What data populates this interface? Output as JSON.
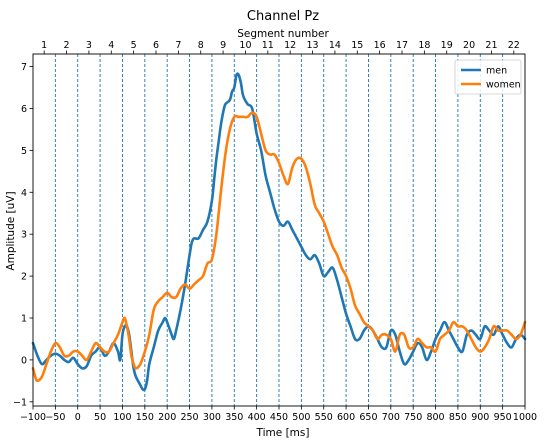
{
  "chart_data": {
    "type": "line",
    "title": "Channel Pz",
    "xlabel": "Time [ms]",
    "ylabel": "Amplitude [uV]",
    "top_axis_label": "Segment number",
    "xlim": [
      -100,
      1000
    ],
    "ylim": [
      -1.1,
      7.3
    ],
    "x_ticks": [
      -100,
      -50,
      0,
      50,
      100,
      150,
      200,
      250,
      300,
      350,
      400,
      450,
      500,
      550,
      600,
      650,
      700,
      750,
      800,
      850,
      900,
      950,
      1000
    ],
    "x_tick_labels": [
      "−100",
      "−50",
      "0",
      "50",
      "100",
      "150",
      "200",
      "250",
      "300",
      "350",
      "400",
      "450",
      "500",
      "550",
      "600",
      "650",
      "700",
      "750",
      "800",
      "850",
      "900",
      "950",
      "1000"
    ],
    "y_ticks": [
      -1,
      0,
      1,
      2,
      3,
      4,
      5,
      6,
      7
    ],
    "y_tick_labels": [
      "−1",
      "0",
      "1",
      "2",
      "3",
      "4",
      "5",
      "6",
      "7"
    ],
    "segment_boundaries": [
      -50,
      0,
      50,
      100,
      150,
      200,
      250,
      300,
      350,
      400,
      450,
      500,
      550,
      600,
      650,
      700,
      750,
      800,
      850,
      900,
      950
    ],
    "segment_numbers": [
      "1",
      "2",
      "3",
      "4",
      "5",
      "6",
      "7",
      "8",
      "9",
      "10",
      "11",
      "12",
      "13",
      "14",
      "15",
      "16",
      "17",
      "18",
      "19",
      "20",
      "21",
      "22"
    ],
    "grid": false,
    "legend_position": "top-right",
    "series": [
      {
        "name": "men",
        "color": "#1f77b4",
        "points": [
          [
            -100,
            0.4
          ],
          [
            -90,
            0.1
          ],
          [
            -80,
            -0.1
          ],
          [
            -70,
            0.0
          ],
          [
            -60,
            0.1
          ],
          [
            -50,
            0.15
          ],
          [
            -40,
            0.1
          ],
          [
            -30,
            0.0
          ],
          [
            -20,
            -0.05
          ],
          [
            -10,
            0.05
          ],
          [
            0,
            -0.1
          ],
          [
            10,
            -0.2
          ],
          [
            20,
            -0.15
          ],
          [
            30,
            0.1
          ],
          [
            40,
            0.2
          ],
          [
            50,
            0.3
          ],
          [
            60,
            0.1
          ],
          [
            70,
            0.2
          ],
          [
            80,
            0.4
          ],
          [
            90,
            0.2
          ],
          [
            95,
            0.0
          ],
          [
            100,
            0.6
          ],
          [
            105,
            0.8
          ],
          [
            110,
            0.8
          ],
          [
            115,
            0.6
          ],
          [
            120,
            0.2
          ],
          [
            125,
            -0.2
          ],
          [
            130,
            -0.4
          ],
          [
            140,
            -0.6
          ],
          [
            145,
            -0.7
          ],
          [
            150,
            -0.7
          ],
          [
            155,
            -0.5
          ],
          [
            160,
            -0.1
          ],
          [
            170,
            0.3
          ],
          [
            180,
            0.7
          ],
          [
            190,
            0.9
          ],
          [
            195,
            1.0
          ],
          [
            200,
            0.9
          ],
          [
            210,
            0.6
          ],
          [
            215,
            0.5
          ],
          [
            220,
            0.7
          ],
          [
            230,
            1.2
          ],
          [
            240,
            1.8
          ],
          [
            250,
            2.5
          ],
          [
            255,
            2.8
          ],
          [
            260,
            2.9
          ],
          [
            270,
            2.9
          ],
          [
            280,
            3.1
          ],
          [
            290,
            3.3
          ],
          [
            300,
            3.8
          ],
          [
            305,
            4.3
          ],
          [
            310,
            4.8
          ],
          [
            315,
            5.2
          ],
          [
            320,
            5.6
          ],
          [
            325,
            5.9
          ],
          [
            330,
            6.1
          ],
          [
            340,
            6.2
          ],
          [
            345,
            6.4
          ],
          [
            350,
            6.5
          ],
          [
            355,
            6.8
          ],
          [
            360,
            6.8
          ],
          [
            365,
            6.6
          ],
          [
            370,
            6.3
          ],
          [
            380,
            6.1
          ],
          [
            390,
            6.0
          ],
          [
            400,
            5.4
          ],
          [
            410,
            5.0
          ],
          [
            420,
            4.4
          ],
          [
            430,
            4.0
          ],
          [
            440,
            3.6
          ],
          [
            450,
            3.3
          ],
          [
            460,
            3.2
          ],
          [
            470,
            3.3
          ],
          [
            480,
            3.1
          ],
          [
            490,
            2.9
          ],
          [
            500,
            2.7
          ],
          [
            510,
            2.5
          ],
          [
            520,
            2.4
          ],
          [
            530,
            2.5
          ],
          [
            540,
            2.3
          ],
          [
            550,
            2.0
          ],
          [
            560,
            2.1
          ],
          [
            570,
            2.2
          ],
          [
            580,
            1.9
          ],
          [
            590,
            1.5
          ],
          [
            600,
            1.1
          ],
          [
            610,
            0.8
          ],
          [
            620,
            0.5
          ],
          [
            630,
            0.5
          ],
          [
            640,
            0.7
          ],
          [
            650,
            0.8
          ],
          [
            660,
            0.7
          ],
          [
            670,
            0.5
          ],
          [
            680,
            0.3
          ],
          [
            690,
            0.3
          ],
          [
            700,
            0.7
          ],
          [
            710,
            0.6
          ],
          [
            720,
            0.2
          ],
          [
            730,
            -0.1
          ],
          [
            740,
            0.0
          ],
          [
            750,
            0.2
          ],
          [
            760,
            0.4
          ],
          [
            770,
            0.3
          ],
          [
            780,
            0.0
          ],
          [
            790,
            0.2
          ],
          [
            800,
            0.5
          ],
          [
            810,
            0.7
          ],
          [
            820,
            0.9
          ],
          [
            830,
            0.7
          ],
          [
            840,
            0.5
          ],
          [
            850,
            0.3
          ],
          [
            860,
            0.2
          ],
          [
            870,
            0.6
          ],
          [
            880,
            0.7
          ],
          [
            890,
            0.6
          ],
          [
            900,
            0.5
          ],
          [
            910,
            0.8
          ],
          [
            920,
            0.7
          ],
          [
            930,
            0.6
          ],
          [
            940,
            0.8
          ],
          [
            950,
            0.6
          ],
          [
            960,
            0.4
          ],
          [
            970,
            0.3
          ],
          [
            980,
            0.5
          ],
          [
            990,
            0.6
          ],
          [
            1000,
            0.5
          ]
        ]
      },
      {
        "name": "women",
        "color": "#ff7f0e",
        "points": [
          [
            -100,
            -0.2
          ],
          [
            -95,
            -0.4
          ],
          [
            -90,
            -0.5
          ],
          [
            -80,
            -0.4
          ],
          [
            -70,
            -0.1
          ],
          [
            -60,
            0.2
          ],
          [
            -50,
            0.4
          ],
          [
            -40,
            0.3
          ],
          [
            -30,
            0.1
          ],
          [
            -20,
            0.1
          ],
          [
            -10,
            0.2
          ],
          [
            0,
            0.2
          ],
          [
            10,
            0.1
          ],
          [
            20,
            0.0
          ],
          [
            30,
            0.2
          ],
          [
            40,
            0.4
          ],
          [
            50,
            0.3
          ],
          [
            60,
            0.2
          ],
          [
            70,
            0.2
          ],
          [
            80,
            0.4
          ],
          [
            90,
            0.6
          ],
          [
            100,
            0.9
          ],
          [
            105,
            1.0
          ],
          [
            110,
            0.8
          ],
          [
            115,
            0.5
          ],
          [
            120,
            0.1
          ],
          [
            125,
            -0.1
          ],
          [
            130,
            -0.2
          ],
          [
            140,
            -0.1
          ],
          [
            150,
            0.2
          ],
          [
            160,
            0.6
          ],
          [
            170,
            1.2
          ],
          [
            180,
            1.4
          ],
          [
            190,
            1.5
          ],
          [
            200,
            1.6
          ],
          [
            210,
            1.5
          ],
          [
            220,
            1.5
          ],
          [
            230,
            1.7
          ],
          [
            240,
            1.8
          ],
          [
            250,
            1.7
          ],
          [
            260,
            1.8
          ],
          [
            270,
            1.9
          ],
          [
            280,
            2.0
          ],
          [
            290,
            2.3
          ],
          [
            300,
            2.4
          ],
          [
            310,
            3.0
          ],
          [
            320,
            4.0
          ],
          [
            330,
            4.9
          ],
          [
            340,
            5.5
          ],
          [
            350,
            5.8
          ],
          [
            360,
            5.8
          ],
          [
            370,
            5.8
          ],
          [
            380,
            5.8
          ],
          [
            390,
            5.9
          ],
          [
            400,
            5.8
          ],
          [
            410,
            5.4
          ],
          [
            420,
            5.0
          ],
          [
            430,
            4.9
          ],
          [
            440,
            4.9
          ],
          [
            450,
            4.7
          ],
          [
            460,
            4.4
          ],
          [
            470,
            4.2
          ],
          [
            480,
            4.6
          ],
          [
            490,
            4.8
          ],
          [
            500,
            4.8
          ],
          [
            510,
            4.6
          ],
          [
            520,
            4.2
          ],
          [
            530,
            3.7
          ],
          [
            540,
            3.5
          ],
          [
            550,
            3.3
          ],
          [
            560,
            3.0
          ],
          [
            570,
            2.7
          ],
          [
            580,
            2.5
          ],
          [
            590,
            2.2
          ],
          [
            600,
            2.0
          ],
          [
            610,
            1.7
          ],
          [
            620,
            1.3
          ],
          [
            630,
            1.1
          ],
          [
            640,
            0.9
          ],
          [
            650,
            0.8
          ],
          [
            660,
            0.7
          ],
          [
            670,
            0.5
          ],
          [
            680,
            0.6
          ],
          [
            690,
            0.6
          ],
          [
            700,
            0.5
          ],
          [
            710,
            0.2
          ],
          [
            720,
            0.6
          ],
          [
            730,
            0.6
          ],
          [
            740,
            0.3
          ],
          [
            750,
            0.3
          ],
          [
            760,
            0.5
          ],
          [
            770,
            0.4
          ],
          [
            780,
            0.3
          ],
          [
            790,
            0.3
          ],
          [
            800,
            0.2
          ],
          [
            810,
            0.5
          ],
          [
            820,
            0.6
          ],
          [
            830,
            0.7
          ],
          [
            840,
            0.9
          ],
          [
            850,
            0.8
          ],
          [
            860,
            0.8
          ],
          [
            870,
            0.7
          ],
          [
            880,
            0.5
          ],
          [
            890,
            0.3
          ],
          [
            900,
            0.2
          ],
          [
            910,
            0.3
          ],
          [
            920,
            0.5
          ],
          [
            930,
            0.8
          ],
          [
            940,
            0.7
          ],
          [
            950,
            0.7
          ],
          [
            960,
            0.7
          ],
          [
            970,
            0.6
          ],
          [
            980,
            0.5
          ],
          [
            990,
            0.6
          ],
          [
            1000,
            0.9
          ]
        ]
      }
    ]
  }
}
